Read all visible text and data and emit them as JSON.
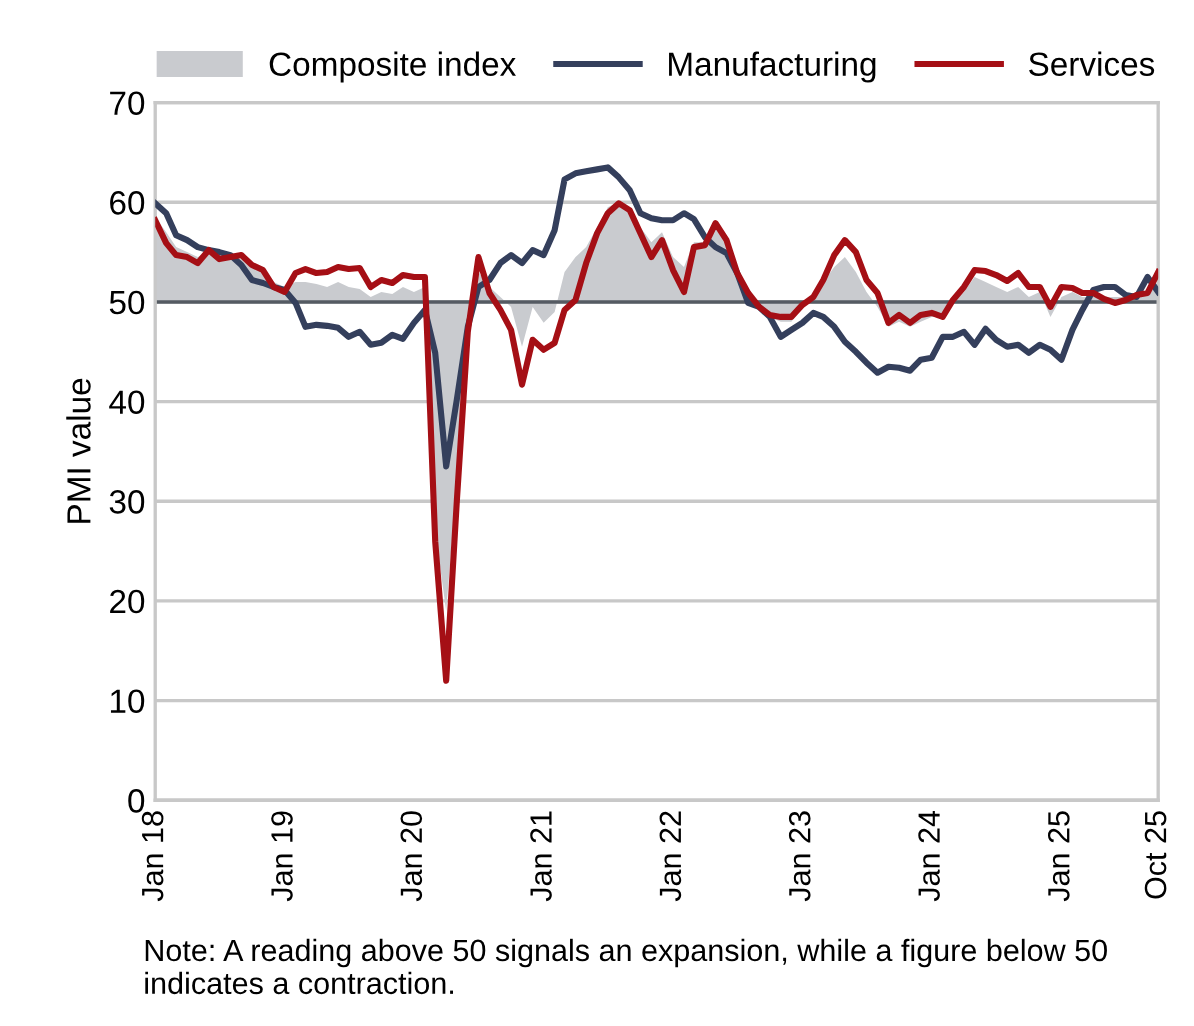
{
  "chart_data": {
    "type": "line",
    "ylabel": "PMI value",
    "x": [
      "2018-01",
      "2018-02",
      "2018-03",
      "2018-04",
      "2018-05",
      "2018-06",
      "2018-07",
      "2018-08",
      "2018-09",
      "2018-10",
      "2018-11",
      "2018-12",
      "2019-01",
      "2019-02",
      "2019-03",
      "2019-04",
      "2019-05",
      "2019-06",
      "2019-07",
      "2019-08",
      "2019-09",
      "2019-10",
      "2019-11",
      "2019-12",
      "2020-01",
      "2020-02",
      "2020-03",
      "2020-04",
      "2020-05",
      "2020-06",
      "2020-07",
      "2020-08",
      "2020-09",
      "2020-10",
      "2020-11",
      "2020-12",
      "2021-01",
      "2021-02",
      "2021-03",
      "2021-04",
      "2021-05",
      "2021-06",
      "2021-07",
      "2021-08",
      "2021-09",
      "2021-10",
      "2021-11",
      "2021-12",
      "2022-01",
      "2022-02",
      "2022-03",
      "2022-04",
      "2022-05",
      "2022-06",
      "2022-07",
      "2022-08",
      "2022-09",
      "2022-10",
      "2022-11",
      "2022-12",
      "2023-01",
      "2023-02",
      "2023-03",
      "2023-04",
      "2023-05",
      "2023-06",
      "2023-07",
      "2023-08",
      "2023-09",
      "2023-10",
      "2023-11",
      "2023-12",
      "2024-01",
      "2024-02",
      "2024-03",
      "2024-04",
      "2024-05",
      "2024-06",
      "2024-07",
      "2024-08",
      "2024-09",
      "2024-10",
      "2024-11",
      "2024-12",
      "2025-01",
      "2025-02",
      "2025-03",
      "2025-04",
      "2025-05",
      "2025-06",
      "2025-07",
      "2025-08",
      "2025-09",
      "2025-10"
    ],
    "series": [
      {
        "name": "Composite index",
        "type": "area",
        "color": "#c9cbcf",
        "values": [
          58.5,
          57,
          55.5,
          55,
          54.5,
          55,
          54.5,
          54.5,
          54.3,
          53.5,
          53,
          52,
          51.5,
          52,
          52,
          51.8,
          51.5,
          52,
          51.5,
          51.3,
          50.5,
          51,
          50.8,
          51.5,
          51,
          51.5,
          27,
          19,
          32,
          47.5,
          53,
          51.5,
          50.5,
          49.5,
          45.5,
          49.5,
          47.9,
          49,
          53,
          54.5,
          55.5,
          57.5,
          59.5,
          60,
          59.5,
          57.5,
          56,
          57,
          54.5,
          53.5,
          56,
          56,
          57.5,
          56,
          52.5,
          50,
          49.5,
          48.5,
          48,
          48,
          49.5,
          50.5,
          52,
          53.5,
          54.5,
          53,
          51,
          49.5,
          47.5,
          48,
          47.5,
          48,
          48.5,
          48.5,
          50,
          51,
          52.5,
          52,
          51.5,
          51,
          51.5,
          50.5,
          51,
          48.5,
          50.5,
          51,
          50.5,
          50.5,
          50.5,
          50.5,
          50.5,
          51,
          51,
          52
        ]
      },
      {
        "name": "Manufacturing",
        "color": "#343f5c",
        "values": [
          59.9,
          58.9,
          56.7,
          56.2,
          55.5,
          55.2,
          55,
          54.7,
          53.7,
          52.2,
          51.9,
          51.5,
          51.2,
          49.9,
          47.5,
          47.7,
          47.6,
          47.4,
          46.5,
          47,
          45.7,
          45.9,
          46.7,
          46.3,
          47.9,
          49.2,
          44.9,
          33.5,
          40.2,
          47.5,
          51.5,
          52.2,
          53.9,
          54.7,
          53.9,
          55.2,
          54.7,
          57.2,
          62.3,
          62.9,
          63.1,
          63.3,
          63.5,
          62.5,
          61.2,
          58.9,
          58.4,
          58.2,
          58.2,
          58.9,
          58.3,
          56.5,
          55.5,
          54.9,
          52.9,
          49.9,
          49.5,
          48.5,
          46.5,
          47.2,
          47.9,
          48.9,
          48.5,
          47.5,
          46,
          45,
          43.9,
          42.9,
          43.5,
          43.4,
          43.1,
          44.2,
          44.4,
          46.5,
          46.5,
          47,
          45.7,
          47.3,
          46.2,
          45.5,
          45.7,
          44.9,
          45.7,
          45.2,
          44.2,
          47.2,
          49.2,
          51.2,
          51.5,
          51.5,
          50.7,
          50.5,
          52.5,
          51
        ]
      },
      {
        "name": "Services",
        "color": "#a50f15",
        "values": [
          58.2,
          55.9,
          54.7,
          54.5,
          53.9,
          55.2,
          54.3,
          54.5,
          54.7,
          53.7,
          53.2,
          51.5,
          51,
          52.9,
          53.3,
          52.9,
          53,
          53.5,
          53.3,
          53.4,
          51.5,
          52.2,
          51.9,
          52.7,
          52.5,
          52.5,
          26,
          12,
          30,
          47,
          54.5,
          50.9,
          49.2,
          47.2,
          41.7,
          46.2,
          45.2,
          45.9,
          49.2,
          50.2,
          53.9,
          56.9,
          58.9,
          59.9,
          59.2,
          56.9,
          54.5,
          56.2,
          53.2,
          51,
          55.5,
          55.7,
          57.9,
          56.2,
          52.9,
          50.9,
          49.5,
          48.7,
          48.5,
          48.5,
          49.7,
          50.5,
          52.2,
          54.7,
          56.2,
          55,
          52.2,
          50.9,
          47.9,
          48.7,
          47.9,
          48.7,
          48.9,
          48.5,
          50.2,
          51.5,
          53.2,
          53.1,
          52.7,
          52.1,
          52.9,
          51.5,
          51.5,
          49.5,
          51.5,
          51.4,
          50.9,
          50.9,
          50.3,
          49.9,
          50.2,
          50.7,
          50.9,
          53
        ]
      }
    ],
    "xlim": [
      "2018-01",
      "2025-10"
    ],
    "xticks": [
      {
        "value": "2018-01",
        "label": "Jan 18"
      },
      {
        "value": "2019-01",
        "label": "Jan 19"
      },
      {
        "value": "2020-01",
        "label": "Jan 20"
      },
      {
        "value": "2021-01",
        "label": "Jan 21"
      },
      {
        "value": "2022-01",
        "label": "Jan 22"
      },
      {
        "value": "2023-01",
        "label": "Jan 23"
      },
      {
        "value": "2024-01",
        "label": "Jan 24"
      },
      {
        "value": "2025-01",
        "label": "Jan 25"
      },
      {
        "value": "2025-10",
        "label": "Oct 25"
      }
    ],
    "ylim": [
      0,
      70
    ],
    "yticks": [
      0,
      10,
      20,
      30,
      40,
      50,
      60,
      70
    ],
    "ref_lines": [
      {
        "axis": "y",
        "value": 50,
        "color": "#555b63"
      }
    ],
    "grid": "y",
    "legend": "top",
    "annotations": [
      "Note: A reading above 50 signals an expansion, while a figure below 50 indicates a contraction."
    ]
  }
}
